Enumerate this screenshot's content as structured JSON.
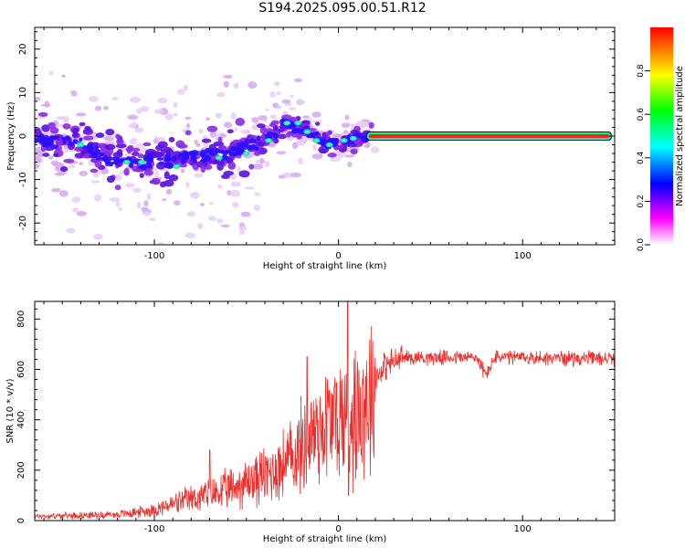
{
  "title": "S194.2025.095.00.51.R12",
  "chart_data": [
    {
      "type": "heatmap",
      "xlabel": "Height of straight line (km)",
      "ylabel": "Frequency (Hz)",
      "xlim": [
        -165,
        150
      ],
      "ylim": [
        -25,
        25
      ],
      "xticks": [
        -100,
        0,
        100
      ],
      "yticks": [
        -20,
        -10,
        0,
        10,
        20
      ],
      "colorbar": {
        "label": "Normalized spectral amplitude",
        "range": [
          0,
          1
        ],
        "ticks": [
          "0.0",
          "0.2",
          "0.4",
          "0.6",
          "0.8"
        ],
        "colors": [
          "#ffffff",
          "#ff00ff",
          "#0000ff",
          "#00ffff",
          "#00ff00",
          "#ffff00",
          "#ff0000"
        ]
      },
      "ridge": {
        "description_points": [
          {
            "x": -160,
            "y": -1
          },
          {
            "x": -140,
            "y": -2
          },
          {
            "x": -120,
            "y": -6
          },
          {
            "x": -100,
            "y": -6
          },
          {
            "x": -80,
            "y": -5
          },
          {
            "x": -60,
            "y": -4
          },
          {
            "x": -40,
            "y": -1
          },
          {
            "x": -28,
            "y": 3
          },
          {
            "x": -15,
            "y": 1
          },
          {
            "x": -5,
            "y": -2
          },
          {
            "x": 5,
            "y": -1
          },
          {
            "x": 15,
            "y": 0
          },
          {
            "x": 150,
            "y": 0
          }
        ],
        "steady_start": 15,
        "steady_value": 0
      }
    },
    {
      "type": "line",
      "xlabel": "Height of straight line (km)",
      "ylabel": "SNR (10 * v/v)",
      "xlim": [
        -165,
        150
      ],
      "ylim": [
        0,
        870
      ],
      "xticks": [
        -100,
        0,
        100
      ],
      "yticks": [
        0,
        200,
        400,
        600,
        800
      ],
      "color": "#e8312e",
      "envelope": [
        {
          "x": -165,
          "y": 18
        },
        {
          "x": -120,
          "y": 25
        },
        {
          "x": -100,
          "y": 45
        },
        {
          "x": -80,
          "y": 90
        },
        {
          "x": -60,
          "y": 130
        },
        {
          "x": -40,
          "y": 190
        },
        {
          "x": -25,
          "y": 260
        },
        {
          "x": -15,
          "y": 360
        },
        {
          "x": -5,
          "y": 420
        },
        {
          "x": 5,
          "y": 430
        },
        {
          "x": 15,
          "y": 520
        },
        {
          "x": 25,
          "y": 620
        },
        {
          "x": 35,
          "y": 650
        },
        {
          "x": 75,
          "y": 650
        },
        {
          "x": 80,
          "y": 580
        },
        {
          "x": 85,
          "y": 650
        },
        {
          "x": 150,
          "y": 645
        }
      ],
      "peaks": [
        {
          "x": -70,
          "y": 280
        },
        {
          "x": -17,
          "y": 650
        },
        {
          "x": 5,
          "y": 870
        },
        {
          "x": 5.5,
          "y": 100
        }
      ]
    }
  ]
}
